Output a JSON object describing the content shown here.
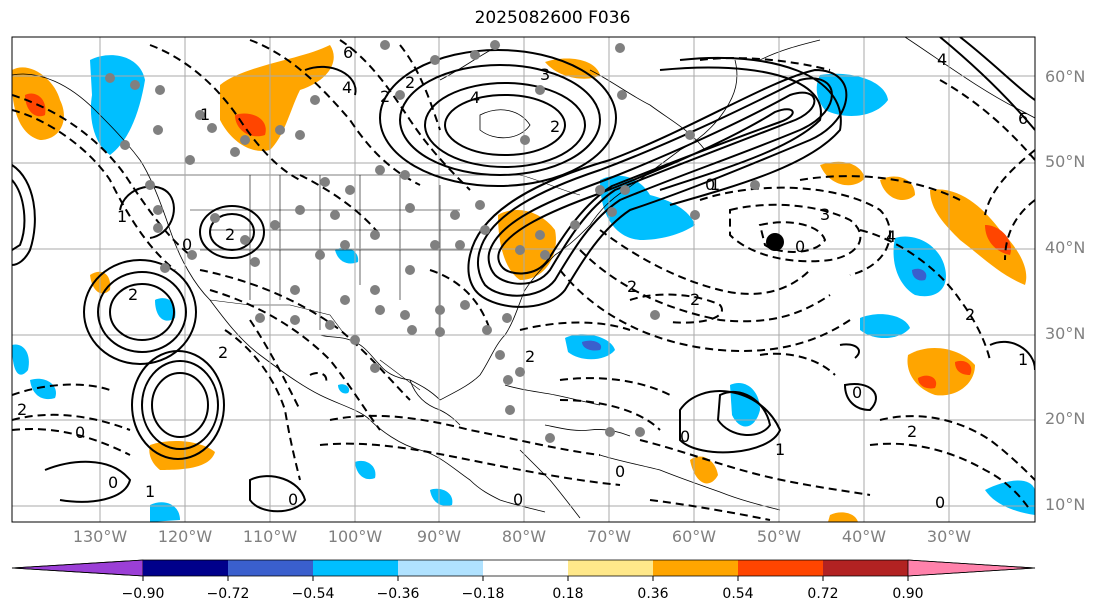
{
  "title": "2025082600 F036",
  "lat_labels": [
    "60°N",
    "50°N",
    "40°N",
    "30°N",
    "20°N",
    "10°N"
  ],
  "lon_labels": [
    "130°W",
    "120°W",
    "110°W",
    "100°W",
    "90°W",
    "80°W",
    "70°W",
    "60°W",
    "50°W",
    "40°W",
    "30°W"
  ],
  "colorbar": {
    "ticks": [
      "−0.90",
      "−0.72",
      "−0.54",
      "−0.36",
      "−0.18",
      "0.18",
      "0.36",
      "0.54",
      "0.72",
      "0.90"
    ],
    "colors": [
      "#9b3fd6",
      "#00008b",
      "#3a5fcd",
      "#00bfff",
      "#b0e2ff",
      "#ffffff",
      "#ffe88a",
      "#ffa500",
      "#ff4500",
      "#b22222",
      "#ff82ab"
    ]
  },
  "contour_labels": [
    "6",
    "4",
    "4",
    "3",
    "2",
    "1",
    "2",
    "4",
    "6",
    "2",
    "2",
    "2",
    "1",
    "2",
    "3",
    "0",
    "4",
    "1",
    "2",
    "2",
    "0",
    "2",
    "0",
    "0",
    "0",
    "1",
    "0",
    "1",
    "0",
    "0",
    "2",
    "2",
    "1",
    "0",
    "0",
    "2",
    "0"
  ],
  "fill_colors": {
    "orange": "#ffa500",
    "red": "#ff4500",
    "cyan": "#00bfff",
    "blue": "#3a5fcd",
    "darkred": "#b22222"
  }
}
